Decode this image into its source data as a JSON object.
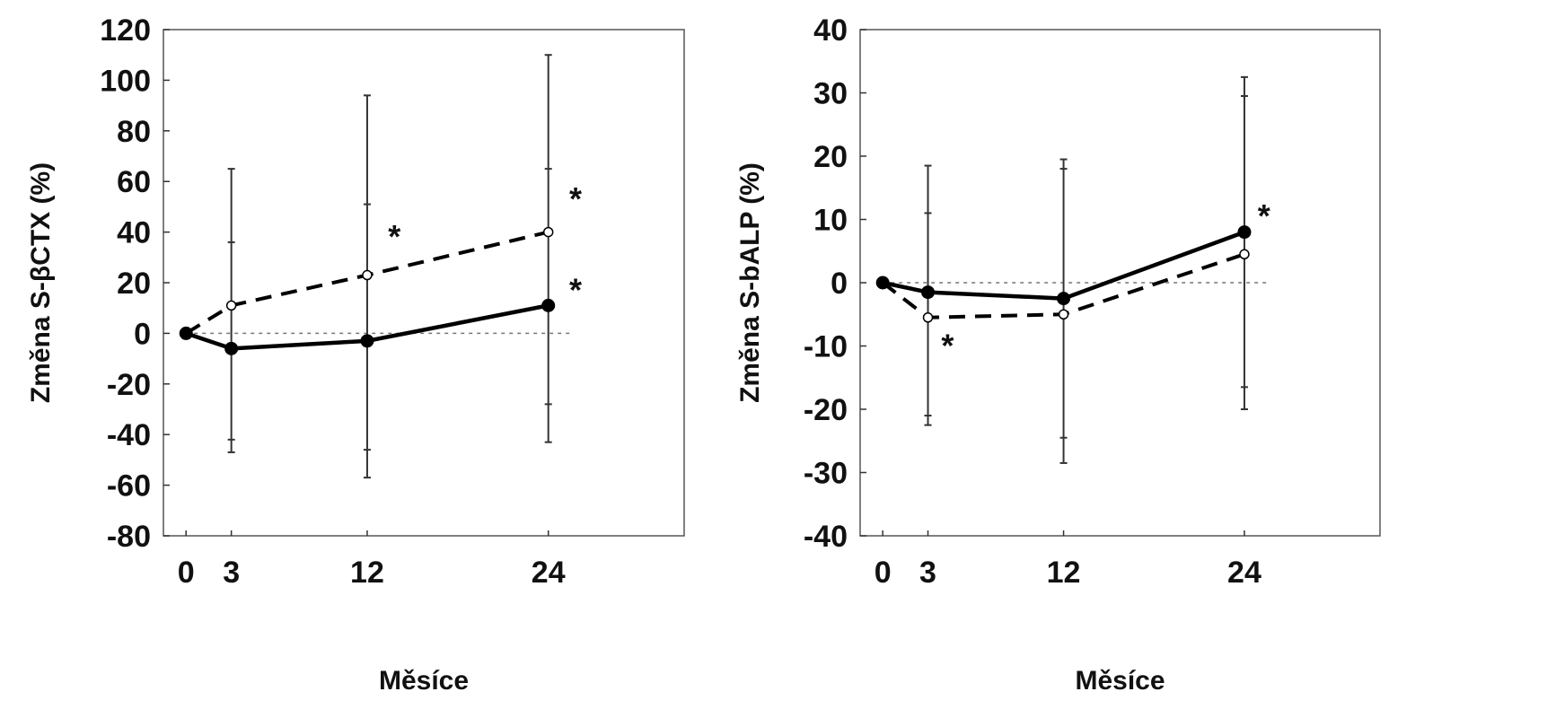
{
  "chart_data": [
    {
      "type": "line",
      "title": "",
      "xlabel": "Měsíce",
      "ylabel": "Změna S-βCTX (%)",
      "x": [
        0,
        3,
        12,
        24
      ],
      "x_ticks": [
        0,
        3,
        12,
        24
      ],
      "xlim": [
        -1.5,
        33
      ],
      "ylim": [
        -80,
        120
      ],
      "y_ticks": [
        120,
        100,
        80,
        60,
        40,
        20,
        0,
        -20,
        -40,
        -60,
        -80
      ],
      "reference_line": 0,
      "grid": false,
      "series": [
        {
          "style": "solid",
          "marker": "filled",
          "values": [
            0,
            -6,
            -3,
            11
          ],
          "error_low": [
            0,
            -47,
            -57,
            -43
          ],
          "error_high": [
            0,
            65,
            94,
            110
          ],
          "inner_low": [
            0,
            -42,
            -46,
            -28
          ],
          "inner_high": [
            0,
            36,
            51,
            65
          ]
        },
        {
          "style": "dashed",
          "marker": "open",
          "values": [
            0,
            11,
            23,
            40
          ]
        }
      ],
      "annotations": [
        {
          "text": "*",
          "x": 13.8,
          "y": 38
        },
        {
          "text": "*",
          "x": 25.8,
          "y": 53
        },
        {
          "text": "*",
          "x": 25.8,
          "y": 17
        }
      ]
    },
    {
      "type": "line",
      "title": "",
      "xlabel": "Měsíce",
      "ylabel": "Změna S-bALP (%)",
      "x": [
        0,
        3,
        12,
        24
      ],
      "x_ticks": [
        0,
        3,
        12,
        24
      ],
      "xlim": [
        -1.5,
        33
      ],
      "ylim": [
        -40,
        40
      ],
      "y_ticks": [
        40,
        30,
        20,
        10,
        0,
        -10,
        -20,
        -30,
        -40
      ],
      "reference_line": 0,
      "grid": false,
      "series": [
        {
          "style": "solid",
          "marker": "filled",
          "values": [
            0,
            -1.5,
            -2.5,
            8
          ],
          "error_low": [
            0,
            -22.5,
            -28.5,
            -20
          ],
          "error_high": [
            0,
            18.5,
            19.5,
            32.5
          ],
          "inner_low": [
            0,
            -21,
            -24.5,
            -16.5
          ],
          "inner_high": [
            0,
            11,
            18,
            29.5
          ]
        },
        {
          "style": "dashed",
          "marker": "open",
          "values": [
            0,
            -5.5,
            -5,
            4.5
          ]
        }
      ],
      "annotations": [
        {
          "text": "*",
          "x": 4.3,
          "y": -10
        },
        {
          "text": "*",
          "x": 25.3,
          "y": 10.5
        }
      ]
    }
  ]
}
